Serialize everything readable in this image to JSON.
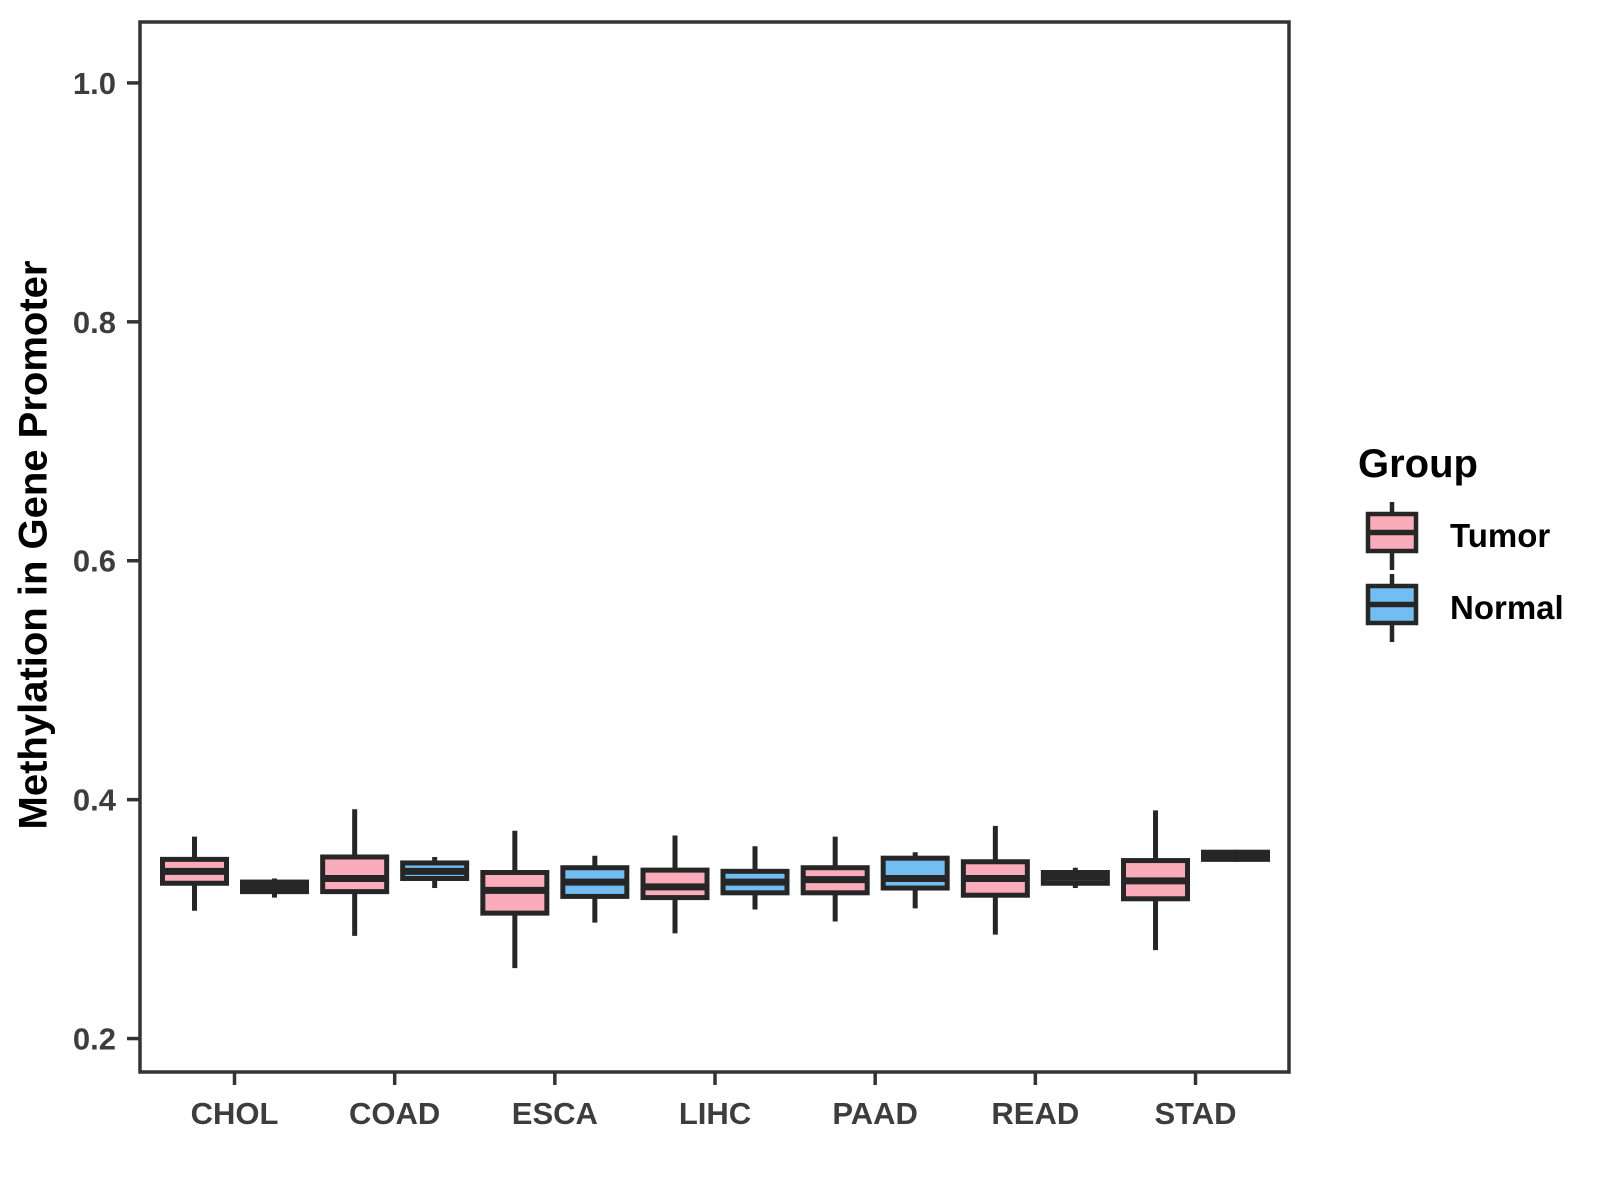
{
  "colors": {
    "background": "#FFFFFF",
    "tumor_fill": "#FAACBB",
    "normal_fill": "#72BEF2",
    "box_border": "#262626",
    "axis_line": "#333333",
    "tick_label": "#3D3D3D",
    "axis_title": "#000000"
  },
  "chart_data": {
    "type": "boxplot",
    "title": "",
    "xlabel": "",
    "ylabel": "Methylation in Gene Promoter",
    "categories": [
      "CHOL",
      "COAD",
      "ESCA",
      "LIHC",
      "PAAD",
      "READ",
      "STAD"
    ],
    "y_ticks": [
      "0.2",
      "0.4",
      "0.6",
      "0.8",
      "1.0"
    ],
    "ylim": [
      0.172,
      1.051
    ],
    "grid": false,
    "legend": {
      "title": "Group",
      "position": "right",
      "entries": [
        {
          "label": "Tumor",
          "color": "#FAACBB"
        },
        {
          "label": "Normal",
          "color": "#72BEF2"
        }
      ]
    },
    "series": [
      {
        "name": "Tumor",
        "fill": "#FAACBB",
        "stats": [
          {
            "category": "CHOL",
            "low": 0.307,
            "q1": 0.33,
            "median": 0.34,
            "q3": 0.35,
            "high": 0.369
          },
          {
            "category": "COAD",
            "low": 0.286,
            "q1": 0.323,
            "median": 0.334,
            "q3": 0.352,
            "high": 0.392
          },
          {
            "category": "ESCA",
            "low": 0.259,
            "q1": 0.305,
            "median": 0.324,
            "q3": 0.339,
            "high": 0.374
          },
          {
            "category": "LIHC",
            "low": 0.288,
            "q1": 0.318,
            "median": 0.327,
            "q3": 0.341,
            "high": 0.37
          },
          {
            "category": "PAAD",
            "low": 0.298,
            "q1": 0.322,
            "median": 0.333,
            "q3": 0.343,
            "high": 0.369
          },
          {
            "category": "READ",
            "low": 0.287,
            "q1": 0.32,
            "median": 0.334,
            "q3": 0.348,
            "high": 0.378
          },
          {
            "category": "STAD",
            "low": 0.274,
            "q1": 0.317,
            "median": 0.332,
            "q3": 0.349,
            "high": 0.391
          }
        ]
      },
      {
        "name": "Normal",
        "fill": "#72BEF2",
        "stats": [
          {
            "category": "CHOL",
            "low": 0.318,
            "q1": 0.323,
            "median": 0.327,
            "q3": 0.331,
            "high": 0.334
          },
          {
            "category": "COAD",
            "low": 0.326,
            "q1": 0.334,
            "median": 0.34,
            "q3": 0.347,
            "high": 0.352
          },
          {
            "category": "ESCA",
            "low": 0.297,
            "q1": 0.319,
            "median": 0.331,
            "q3": 0.343,
            "high": 0.353
          },
          {
            "category": "LIHC",
            "low": 0.308,
            "q1": 0.322,
            "median": 0.331,
            "q3": 0.34,
            "high": 0.361
          },
          {
            "category": "PAAD",
            "low": 0.309,
            "q1": 0.326,
            "median": 0.334,
            "q3": 0.351,
            "high": 0.356
          },
          {
            "category": "READ",
            "low": 0.326,
            "q1": 0.33,
            "median": 0.335,
            "q3": 0.339,
            "high": 0.343
          },
          {
            "category": "STAD",
            "low": 0.348,
            "q1": 0.35,
            "median": 0.353,
            "q3": 0.356,
            "high": 0.358
          }
        ]
      }
    ]
  }
}
